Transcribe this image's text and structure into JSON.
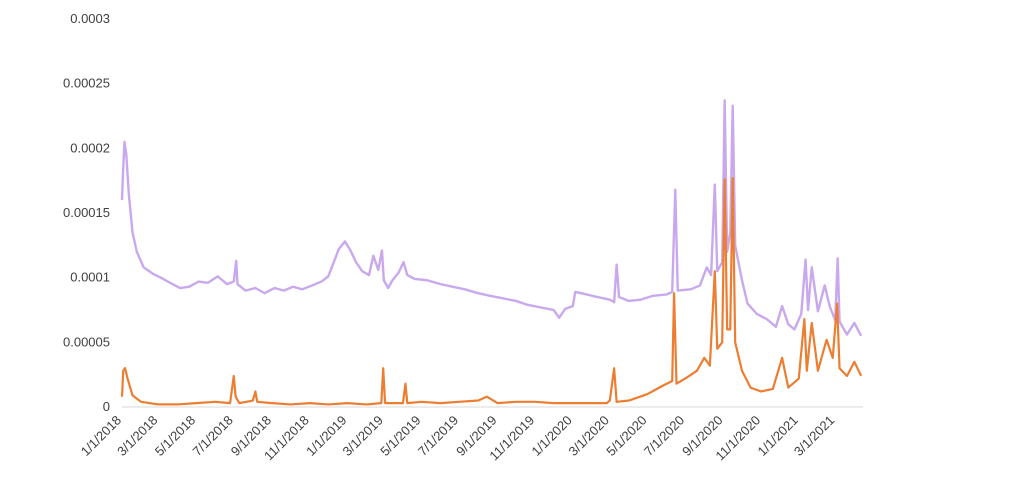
{
  "chart_data": {
    "type": "line",
    "title": "",
    "xlabel": "",
    "ylabel": "",
    "ylim": [
      0,
      0.0003
    ],
    "y_ticks": [
      "0",
      "0.00005",
      "0.0001",
      "0.00015",
      "0.0002",
      "0.00025",
      "0.0003"
    ],
    "x_range": [
      "2018-01-01",
      "2021-04-15"
    ],
    "x_ticks": [
      {
        "date": "2018-01-01",
        "label": "1/1/2018"
      },
      {
        "date": "2018-03-01",
        "label": "3/1/2018"
      },
      {
        "date": "2018-05-01",
        "label": "5/1/2018"
      },
      {
        "date": "2018-07-01",
        "label": "7/1/2018"
      },
      {
        "date": "2018-09-01",
        "label": "9/1/2018"
      },
      {
        "date": "2018-11-01",
        "label": "11/1/2018"
      },
      {
        "date": "2019-01-01",
        "label": "1/1/2019"
      },
      {
        "date": "2019-03-01",
        "label": "3/1/2019"
      },
      {
        "date": "2019-05-01",
        "label": "5/1/2019"
      },
      {
        "date": "2019-07-01",
        "label": "7/1/2019"
      },
      {
        "date": "2019-09-01",
        "label": "9/1/2019"
      },
      {
        "date": "2019-11-01",
        "label": "11/1/2019"
      },
      {
        "date": "2020-01-01",
        "label": "1/1/2020"
      },
      {
        "date": "2020-03-01",
        "label": "3/1/2020"
      },
      {
        "date": "2020-05-01",
        "label": "5/1/2020"
      },
      {
        "date": "2020-07-01",
        "label": "7/1/2020"
      },
      {
        "date": "2020-09-01",
        "label": "9/1/2020"
      },
      {
        "date": "2020-11-01",
        "label": "11/1/2020"
      },
      {
        "date": "2021-01-01",
        "label": "1/1/2021"
      },
      {
        "date": "2021-03-01",
        "label": "3/1/2021"
      }
    ],
    "grid": false,
    "legend": "none",
    "series": [
      {
        "color": "#c9a9ee",
        "points": [
          [
            "2018-01-01",
            0.00016
          ],
          [
            "2018-01-03",
            0.000185
          ],
          [
            "2018-01-05",
            0.000205
          ],
          [
            "2018-01-08",
            0.000195
          ],
          [
            "2018-01-12",
            0.000165
          ],
          [
            "2018-01-18",
            0.000135
          ],
          [
            "2018-01-25",
            0.00012
          ],
          [
            "2018-02-05",
            0.000108
          ],
          [
            "2018-02-20",
            0.000103
          ],
          [
            "2018-03-05",
            0.0001
          ],
          [
            "2018-03-20",
            9.6e-05
          ],
          [
            "2018-04-05",
            9.2e-05
          ],
          [
            "2018-04-20",
            9.3e-05
          ],
          [
            "2018-05-05",
            9.7e-05
          ],
          [
            "2018-05-20",
            9.6e-05
          ],
          [
            "2018-06-05",
            0.000101
          ],
          [
            "2018-06-20",
            9.5e-05
          ],
          [
            "2018-07-01",
            9.7e-05
          ],
          [
            "2018-07-05",
            0.000113
          ],
          [
            "2018-07-07",
            9.5e-05
          ],
          [
            "2018-07-20",
            9e-05
          ],
          [
            "2018-08-05",
            9.2e-05
          ],
          [
            "2018-08-20",
            8.8e-05
          ],
          [
            "2018-09-05",
            9.2e-05
          ],
          [
            "2018-09-20",
            9e-05
          ],
          [
            "2018-10-05",
            9.3e-05
          ],
          [
            "2018-10-20",
            9.1e-05
          ],
          [
            "2018-11-05",
            9.4e-05
          ],
          [
            "2018-11-20",
            9.7e-05
          ],
          [
            "2018-12-01",
            0.000101
          ],
          [
            "2018-12-10",
            0.000112
          ],
          [
            "2018-12-18",
            0.000122
          ],
          [
            "2018-12-28",
            0.000128
          ],
          [
            "2019-01-05",
            0.000122
          ],
          [
            "2019-01-15",
            0.000112
          ],
          [
            "2019-01-25",
            0.000105
          ],
          [
            "2019-02-05",
            0.000102
          ],
          [
            "2019-02-12",
            0.000117
          ],
          [
            "2019-02-20",
            0.000106
          ],
          [
            "2019-02-26",
            0.000121
          ],
          [
            "2019-03-01",
            9.8e-05
          ],
          [
            "2019-03-08",
            9.2e-05
          ],
          [
            "2019-03-15",
            9.8e-05
          ],
          [
            "2019-03-25",
            0.000104
          ],
          [
            "2019-04-02",
            0.000112
          ],
          [
            "2019-04-08",
            0.000102
          ],
          [
            "2019-04-20",
            9.9e-05
          ],
          [
            "2019-05-10",
            9.8e-05
          ],
          [
            "2019-06-01",
            9.5e-05
          ],
          [
            "2019-06-20",
            9.3e-05
          ],
          [
            "2019-07-10",
            9.1e-05
          ],
          [
            "2019-08-01",
            8.8e-05
          ],
          [
            "2019-08-20",
            8.6e-05
          ],
          [
            "2019-09-10",
            8.4e-05
          ],
          [
            "2019-10-01",
            8.2e-05
          ],
          [
            "2019-10-20",
            7.9e-05
          ],
          [
            "2019-11-10",
            7.7e-05
          ],
          [
            "2019-12-01",
            7.5e-05
          ],
          [
            "2019-12-10",
            6.9e-05
          ],
          [
            "2019-12-20",
            7.6e-05
          ],
          [
            "2020-01-01",
            7.8e-05
          ],
          [
            "2020-01-05",
            8.9e-05
          ],
          [
            "2020-01-15",
            8.8e-05
          ],
          [
            "2020-02-01",
            8.6e-05
          ],
          [
            "2020-02-20",
            8.4e-05
          ],
          [
            "2020-03-01",
            8.3e-05
          ],
          [
            "2020-03-08",
            8.1e-05
          ],
          [
            "2020-03-12",
            0.00011
          ],
          [
            "2020-03-16",
            8.5e-05
          ],
          [
            "2020-04-01",
            8.2e-05
          ],
          [
            "2020-04-20",
            8.3e-05
          ],
          [
            "2020-05-10",
            8.6e-05
          ],
          [
            "2020-06-01",
            8.7e-05
          ],
          [
            "2020-06-10",
            8.9e-05
          ],
          [
            "2020-06-15",
            0.000168
          ],
          [
            "2020-06-19",
            9e-05
          ],
          [
            "2020-07-10",
            9.1e-05
          ],
          [
            "2020-07-25",
            9.4e-05
          ],
          [
            "2020-08-05",
            0.000108
          ],
          [
            "2020-08-12",
            0.000102
          ],
          [
            "2020-08-18",
            0.000172
          ],
          [
            "2020-08-22",
            0.000105
          ],
          [
            "2020-08-30",
            0.000112
          ],
          [
            "2020-09-03",
            0.000237
          ],
          [
            "2020-09-07",
            0.00012
          ],
          [
            "2020-09-12",
            0.000135
          ],
          [
            "2020-09-16",
            0.000233
          ],
          [
            "2020-09-20",
            0.000125
          ],
          [
            "2020-10-01",
            9.8e-05
          ],
          [
            "2020-10-10",
            8e-05
          ],
          [
            "2020-10-25",
            7.2e-05
          ],
          [
            "2020-11-10",
            6.8e-05
          ],
          [
            "2020-11-25",
            6.2e-05
          ],
          [
            "2020-12-05",
            7.8e-05
          ],
          [
            "2020-12-15",
            6.4e-05
          ],
          [
            "2020-12-25",
            6e-05
          ],
          [
            "2021-01-05",
            7.2e-05
          ],
          [
            "2021-01-12",
            0.000114
          ],
          [
            "2021-01-16",
            7.5e-05
          ],
          [
            "2021-01-22",
            0.000108
          ],
          [
            "2021-02-01",
            7.4e-05
          ],
          [
            "2021-02-12",
            9.4e-05
          ],
          [
            "2021-02-20",
            7.8e-05
          ],
          [
            "2021-03-01",
            6.7e-05
          ],
          [
            "2021-03-05",
            0.000115
          ],
          [
            "2021-03-08",
            6.6e-05
          ],
          [
            "2021-03-20",
            5.6e-05
          ],
          [
            "2021-04-01",
            6.5e-05
          ],
          [
            "2021-04-12",
            5.5e-05
          ]
        ]
      },
      {
        "color": "#ed7d31",
        "points": [
          [
            "2018-01-01",
            8e-06
          ],
          [
            "2018-01-03",
            2.8e-05
          ],
          [
            "2018-01-06",
            3e-05
          ],
          [
            "2018-01-10",
            2.2e-05
          ],
          [
            "2018-01-18",
            9e-06
          ],
          [
            "2018-02-01",
            4e-06
          ],
          [
            "2018-03-01",
            2e-06
          ],
          [
            "2018-04-01",
            2e-06
          ],
          [
            "2018-05-01",
            3e-06
          ],
          [
            "2018-06-01",
            4e-06
          ],
          [
            "2018-06-25",
            3e-06
          ],
          [
            "2018-07-01",
            2.4e-05
          ],
          [
            "2018-07-04",
            8e-06
          ],
          [
            "2018-07-10",
            3e-06
          ],
          [
            "2018-08-01",
            5e-06
          ],
          [
            "2018-08-05",
            1.2e-05
          ],
          [
            "2018-08-08",
            4e-06
          ],
          [
            "2018-09-01",
            3e-06
          ],
          [
            "2018-10-01",
            2e-06
          ],
          [
            "2018-11-01",
            3e-06
          ],
          [
            "2018-12-01",
            2e-06
          ],
          [
            "2019-01-01",
            3e-06
          ],
          [
            "2019-02-01",
            2e-06
          ],
          [
            "2019-02-25",
            3e-06
          ],
          [
            "2019-02-28",
            3e-05
          ],
          [
            "2019-03-03",
            3e-06
          ],
          [
            "2019-04-01",
            3e-06
          ],
          [
            "2019-04-05",
            1.8e-05
          ],
          [
            "2019-04-08",
            3e-06
          ],
          [
            "2019-05-01",
            4e-06
          ],
          [
            "2019-06-01",
            3e-06
          ],
          [
            "2019-07-01",
            4e-06
          ],
          [
            "2019-08-01",
            5e-06
          ],
          [
            "2019-08-15",
            8e-06
          ],
          [
            "2019-09-01",
            3e-06
          ],
          [
            "2019-10-01",
            4e-06
          ],
          [
            "2019-11-01",
            4e-06
          ],
          [
            "2019-12-01",
            3e-06
          ],
          [
            "2020-01-01",
            3e-06
          ],
          [
            "2020-02-01",
            3e-06
          ],
          [
            "2020-02-25",
            3e-06
          ],
          [
            "2020-03-01",
            5e-06
          ],
          [
            "2020-03-08",
            3e-05
          ],
          [
            "2020-03-12",
            4e-06
          ],
          [
            "2020-04-01",
            5e-06
          ],
          [
            "2020-05-01",
            1e-05
          ],
          [
            "2020-05-20",
            1.5e-05
          ],
          [
            "2020-06-01",
            1.8e-05
          ],
          [
            "2020-06-10",
            2e-05
          ],
          [
            "2020-06-13",
            8.8e-05
          ],
          [
            "2020-06-17",
            1.8e-05
          ],
          [
            "2020-07-01",
            2.2e-05
          ],
          [
            "2020-07-20",
            2.8e-05
          ],
          [
            "2020-08-01",
            3.8e-05
          ],
          [
            "2020-08-10",
            3.2e-05
          ],
          [
            "2020-08-18",
            0.000105
          ],
          [
            "2020-08-22",
            4.5e-05
          ],
          [
            "2020-08-30",
            5e-05
          ],
          [
            "2020-09-03",
            0.000176
          ],
          [
            "2020-09-07",
            6e-05
          ],
          [
            "2020-09-12",
            6e-05
          ],
          [
            "2020-09-16",
            0.000177
          ],
          [
            "2020-09-20",
            5e-05
          ],
          [
            "2020-10-01",
            2.8e-05
          ],
          [
            "2020-10-15",
            1.5e-05
          ],
          [
            "2020-11-01",
            1.2e-05
          ],
          [
            "2020-11-20",
            1.4e-05
          ],
          [
            "2020-12-05",
            3.8e-05
          ],
          [
            "2020-12-15",
            1.5e-05
          ],
          [
            "2021-01-01",
            2.2e-05
          ],
          [
            "2021-01-10",
            6.8e-05
          ],
          [
            "2021-01-14",
            2.8e-05
          ],
          [
            "2021-01-22",
            6.5e-05
          ],
          [
            "2021-02-01",
            2.8e-05
          ],
          [
            "2021-02-15",
            5.2e-05
          ],
          [
            "2021-02-25",
            3.8e-05
          ],
          [
            "2021-03-04",
            8e-05
          ],
          [
            "2021-03-08",
            3e-05
          ],
          [
            "2021-03-20",
            2.4e-05
          ],
          [
            "2021-04-01",
            3.5e-05
          ],
          [
            "2021-04-12",
            2.4e-05
          ]
        ]
      }
    ]
  }
}
